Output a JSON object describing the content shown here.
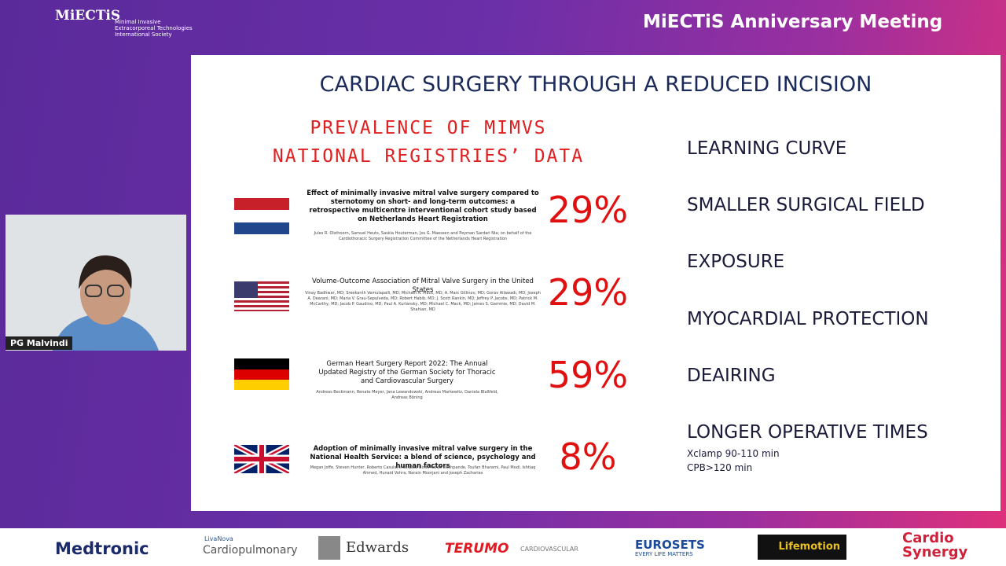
{
  "header": {
    "logo": "MiECTiS",
    "logo_lines": [
      "Minimal Invasive",
      "Extracorporeal Technologies",
      "International Society"
    ],
    "event": "MiECTiS Anniversary Meeting"
  },
  "speaker": {
    "name": "PG Malvindi"
  },
  "slide": {
    "title": "CARDIAC SURGERY THROUGH A REDUCED INCISION",
    "subtitle": [
      "PREVALENCE OF MIMVS",
      "NATIONAL REGISTRIES’ DATA"
    ],
    "studies": [
      {
        "title": "Effect of minimally invasive mitral valve surgery compared to sternotomy on short- and long-term outcomes: a retrospective multicentre interventional cohort study based on Netherlands Heart Registration",
        "authors": "Jules R. Olsthoorn, Samuel Heuts, Saskia Houterman, Jos G. Maessen and Peyman Sardari Nia; on behalf of the Cardiothoracic Surgery Registration Committee of the Netherlands Heart Registration",
        "rate": "29%"
      },
      {
        "title": "Volume-Outcome Association of Mitral Valve Surgery in the United States",
        "authors": "Vinay Badhwar, MD; Sreekanth Vemulapalli, MD; Michael A. Mack, MD; A. Marc Gillinov, MD; Gorav Ailawadi, MD; Joseph A. Dearani, MD; Maria V. Grau-Sepulveda, MD; Robert Habib, MD; J. Scott Rankin, MD; Jeffrey P. Jacobs, MD; Patrick M. McCarthy, MD; Jacob P. Gaudino, MD; Paul A. Kurlansky, MD; Michael C. Mack, MD; James S. Gammie, MD; David M. Shahian, MD",
        "rate": "29%"
      },
      {
        "title": "German Heart Surgery Report 2022: The Annual Updated Registry of the German Society for Thoracic and Cardiovascular Surgery",
        "authors": "Andreas Beckmann, Renate Meyer, Jana Lewandowski, Andreas Markewitz, Daniela Blaßfeld, Andreas Böning",
        "rate": "59%"
      },
      {
        "title": "Adoption of minimally invasive mitral valve surgery in the National Health Service: a blend of science, psychology and human factors",
        "authors": "Megan Joffe, Steven Hunter, Roberto Casula, Inderpaul Birdi, Ranjit Deshpande, Toufan Bharami, Paul Modi, Ishtiaq Ahmed, Hunaid Vohra, Narain Moorjani and Joseph Zacharias",
        "rate": "8%"
      }
    ],
    "factors": [
      "LEARNING CURVE",
      "SMALLER SURGICAL FIELD",
      "EXPOSURE",
      "MYOCARDIAL PROTECTION",
      "DEAIRING",
      "LONGER OPERATIVE TIMES"
    ],
    "factor_notes": [
      "Xclamp 90-110 min",
      "CPB>120 min"
    ]
  },
  "sponsors": [
    "Medtronic",
    "LivaNova",
    "Cardiopulmonary",
    "Edwards",
    "TERUMO",
    "CARDIOVASCULAR",
    "EUROSETS",
    "EVERY LIFE MATTERS",
    "Lifemotion",
    "Cardio",
    "Synergy"
  ]
}
